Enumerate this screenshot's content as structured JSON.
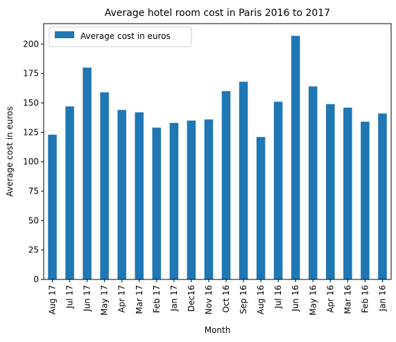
{
  "chart_data": {
    "type": "bar",
    "title": "Average hotel room cost in Paris 2016 to 2017",
    "xlabel": "Month",
    "ylabel": "Average cost in euros",
    "legend": {
      "label": "Average cost in euros",
      "position": "top-left"
    },
    "categories": [
      "Aug 17",
      "Jul 17",
      "Jun 17",
      "May 17",
      "Apr 17",
      "Mar 17",
      "Feb 17",
      "Jan 17",
      "Dec16",
      "Nov 16",
      "Oct 16",
      "Sep 16",
      "Aug 16",
      "Jul 16",
      "Jun 16",
      "May 16",
      "Apr 16",
      "Mar 16",
      "Feb 16",
      "Jan 16"
    ],
    "series": [
      {
        "name": "Average cost in euros",
        "values": [
          123,
          147,
          180,
          159,
          144,
          142,
          129,
          133,
          135,
          136,
          160,
          168,
          121,
          151,
          207,
          164,
          149,
          146,
          134,
          141
        ]
      }
    ],
    "yticks": [
      0,
      25,
      50,
      75,
      100,
      125,
      150,
      175,
      200
    ],
    "ylim": [
      0,
      217.35
    ],
    "grid": false,
    "colors": {
      "bar": "#1f77b4"
    }
  }
}
